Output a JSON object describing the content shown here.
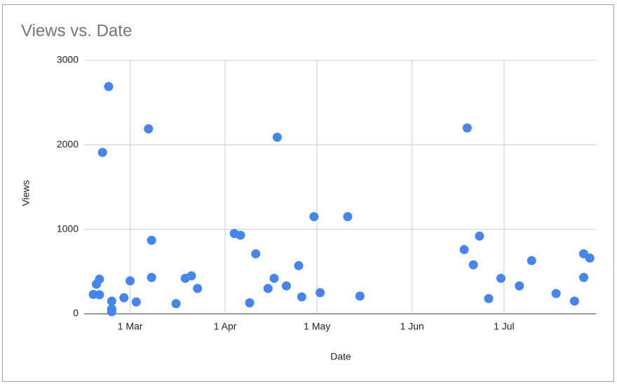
{
  "chart_data": {
    "type": "scatter",
    "title": "Views vs. Date",
    "x_label": "Date",
    "y_label": "Views",
    "color": "#4285f4",
    "grid": true,
    "xlim": [
      45,
      212
    ],
    "xticks": [
      {
        "value": 60,
        "label": "1 Mar"
      },
      {
        "value": 91,
        "label": "1 Apr"
      },
      {
        "value": 121,
        "label": "1 May"
      },
      {
        "value": 152,
        "label": "1 Jun"
      },
      {
        "value": 182,
        "label": "1 Jul"
      }
    ],
    "ylim": [
      0,
      3000
    ],
    "yticks": [
      0,
      1000,
      2000,
      3000
    ],
    "x": [
      48,
      49,
      50,
      50,
      51,
      53,
      54,
      54,
      54,
      58,
      60,
      62,
      66,
      67,
      67,
      75,
      78,
      80,
      82,
      94,
      96,
      99,
      101,
      105,
      107,
      108,
      111,
      115,
      116,
      120,
      122,
      131,
      135,
      169,
      170,
      172,
      174,
      177,
      181,
      187,
      191,
      199,
      205,
      208,
      208,
      210
    ],
    "values": [
      230,
      350,
      410,
      225,
      1910,
      2690,
      150,
      58,
      25,
      190,
      390,
      140,
      2190,
      430,
      870,
      120,
      420,
      450,
      300,
      950,
      930,
      130,
      710,
      300,
      420,
      2090,
      330,
      570,
      200,
      1150,
      250,
      1150,
      210,
      760,
      2200,
      580,
      920,
      180,
      420,
      330,
      630,
      240,
      150,
      430,
      710,
      660
    ]
  }
}
